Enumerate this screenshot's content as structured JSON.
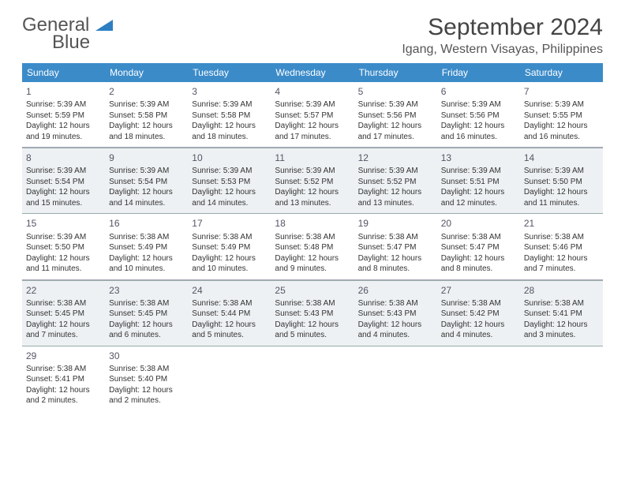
{
  "logo": {
    "text1": "General",
    "text2": "Blue"
  },
  "header": {
    "month_title": "September 2024",
    "location": "Igang, Western Visayas, Philippines"
  },
  "colors": {
    "header_bar": "#3b8bc9",
    "shaded_row": "#eef1f3",
    "border": "#9aa5b0",
    "text": "#333333"
  },
  "day_names": [
    "Sunday",
    "Monday",
    "Tuesday",
    "Wednesday",
    "Thursday",
    "Friday",
    "Saturday"
  ],
  "weeks": [
    {
      "shaded": false,
      "days": [
        {
          "num": "1",
          "sunrise": "Sunrise: 5:39 AM",
          "sunset": "Sunset: 5:59 PM",
          "daylight": "Daylight: 12 hours and 19 minutes."
        },
        {
          "num": "2",
          "sunrise": "Sunrise: 5:39 AM",
          "sunset": "Sunset: 5:58 PM",
          "daylight": "Daylight: 12 hours and 18 minutes."
        },
        {
          "num": "3",
          "sunrise": "Sunrise: 5:39 AM",
          "sunset": "Sunset: 5:58 PM",
          "daylight": "Daylight: 12 hours and 18 minutes."
        },
        {
          "num": "4",
          "sunrise": "Sunrise: 5:39 AM",
          "sunset": "Sunset: 5:57 PM",
          "daylight": "Daylight: 12 hours and 17 minutes."
        },
        {
          "num": "5",
          "sunrise": "Sunrise: 5:39 AM",
          "sunset": "Sunset: 5:56 PM",
          "daylight": "Daylight: 12 hours and 17 minutes."
        },
        {
          "num": "6",
          "sunrise": "Sunrise: 5:39 AM",
          "sunset": "Sunset: 5:56 PM",
          "daylight": "Daylight: 12 hours and 16 minutes."
        },
        {
          "num": "7",
          "sunrise": "Sunrise: 5:39 AM",
          "sunset": "Sunset: 5:55 PM",
          "daylight": "Daylight: 12 hours and 16 minutes."
        }
      ]
    },
    {
      "shaded": true,
      "days": [
        {
          "num": "8",
          "sunrise": "Sunrise: 5:39 AM",
          "sunset": "Sunset: 5:54 PM",
          "daylight": "Daylight: 12 hours and 15 minutes."
        },
        {
          "num": "9",
          "sunrise": "Sunrise: 5:39 AM",
          "sunset": "Sunset: 5:54 PM",
          "daylight": "Daylight: 12 hours and 14 minutes."
        },
        {
          "num": "10",
          "sunrise": "Sunrise: 5:39 AM",
          "sunset": "Sunset: 5:53 PM",
          "daylight": "Daylight: 12 hours and 14 minutes."
        },
        {
          "num": "11",
          "sunrise": "Sunrise: 5:39 AM",
          "sunset": "Sunset: 5:52 PM",
          "daylight": "Daylight: 12 hours and 13 minutes."
        },
        {
          "num": "12",
          "sunrise": "Sunrise: 5:39 AM",
          "sunset": "Sunset: 5:52 PM",
          "daylight": "Daylight: 12 hours and 13 minutes."
        },
        {
          "num": "13",
          "sunrise": "Sunrise: 5:39 AM",
          "sunset": "Sunset: 5:51 PM",
          "daylight": "Daylight: 12 hours and 12 minutes."
        },
        {
          "num": "14",
          "sunrise": "Sunrise: 5:39 AM",
          "sunset": "Sunset: 5:50 PM",
          "daylight": "Daylight: 12 hours and 11 minutes."
        }
      ]
    },
    {
      "shaded": false,
      "days": [
        {
          "num": "15",
          "sunrise": "Sunrise: 5:39 AM",
          "sunset": "Sunset: 5:50 PM",
          "daylight": "Daylight: 12 hours and 11 minutes."
        },
        {
          "num": "16",
          "sunrise": "Sunrise: 5:38 AM",
          "sunset": "Sunset: 5:49 PM",
          "daylight": "Daylight: 12 hours and 10 minutes."
        },
        {
          "num": "17",
          "sunrise": "Sunrise: 5:38 AM",
          "sunset": "Sunset: 5:49 PM",
          "daylight": "Daylight: 12 hours and 10 minutes."
        },
        {
          "num": "18",
          "sunrise": "Sunrise: 5:38 AM",
          "sunset": "Sunset: 5:48 PM",
          "daylight": "Daylight: 12 hours and 9 minutes."
        },
        {
          "num": "19",
          "sunrise": "Sunrise: 5:38 AM",
          "sunset": "Sunset: 5:47 PM",
          "daylight": "Daylight: 12 hours and 8 minutes."
        },
        {
          "num": "20",
          "sunrise": "Sunrise: 5:38 AM",
          "sunset": "Sunset: 5:47 PM",
          "daylight": "Daylight: 12 hours and 8 minutes."
        },
        {
          "num": "21",
          "sunrise": "Sunrise: 5:38 AM",
          "sunset": "Sunset: 5:46 PM",
          "daylight": "Daylight: 12 hours and 7 minutes."
        }
      ]
    },
    {
      "shaded": true,
      "days": [
        {
          "num": "22",
          "sunrise": "Sunrise: 5:38 AM",
          "sunset": "Sunset: 5:45 PM",
          "daylight": "Daylight: 12 hours and 7 minutes."
        },
        {
          "num": "23",
          "sunrise": "Sunrise: 5:38 AM",
          "sunset": "Sunset: 5:45 PM",
          "daylight": "Daylight: 12 hours and 6 minutes."
        },
        {
          "num": "24",
          "sunrise": "Sunrise: 5:38 AM",
          "sunset": "Sunset: 5:44 PM",
          "daylight": "Daylight: 12 hours and 5 minutes."
        },
        {
          "num": "25",
          "sunrise": "Sunrise: 5:38 AM",
          "sunset": "Sunset: 5:43 PM",
          "daylight": "Daylight: 12 hours and 5 minutes."
        },
        {
          "num": "26",
          "sunrise": "Sunrise: 5:38 AM",
          "sunset": "Sunset: 5:43 PM",
          "daylight": "Daylight: 12 hours and 4 minutes."
        },
        {
          "num": "27",
          "sunrise": "Sunrise: 5:38 AM",
          "sunset": "Sunset: 5:42 PM",
          "daylight": "Daylight: 12 hours and 4 minutes."
        },
        {
          "num": "28",
          "sunrise": "Sunrise: 5:38 AM",
          "sunset": "Sunset: 5:41 PM",
          "daylight": "Daylight: 12 hours and 3 minutes."
        }
      ]
    },
    {
      "shaded": false,
      "days": [
        {
          "num": "29",
          "sunrise": "Sunrise: 5:38 AM",
          "sunset": "Sunset: 5:41 PM",
          "daylight": "Daylight: 12 hours and 2 minutes."
        },
        {
          "num": "30",
          "sunrise": "Sunrise: 5:38 AM",
          "sunset": "Sunset: 5:40 PM",
          "daylight": "Daylight: 12 hours and 2 minutes."
        },
        {
          "empty": true
        },
        {
          "empty": true
        },
        {
          "empty": true
        },
        {
          "empty": true
        },
        {
          "empty": true
        }
      ]
    }
  ]
}
